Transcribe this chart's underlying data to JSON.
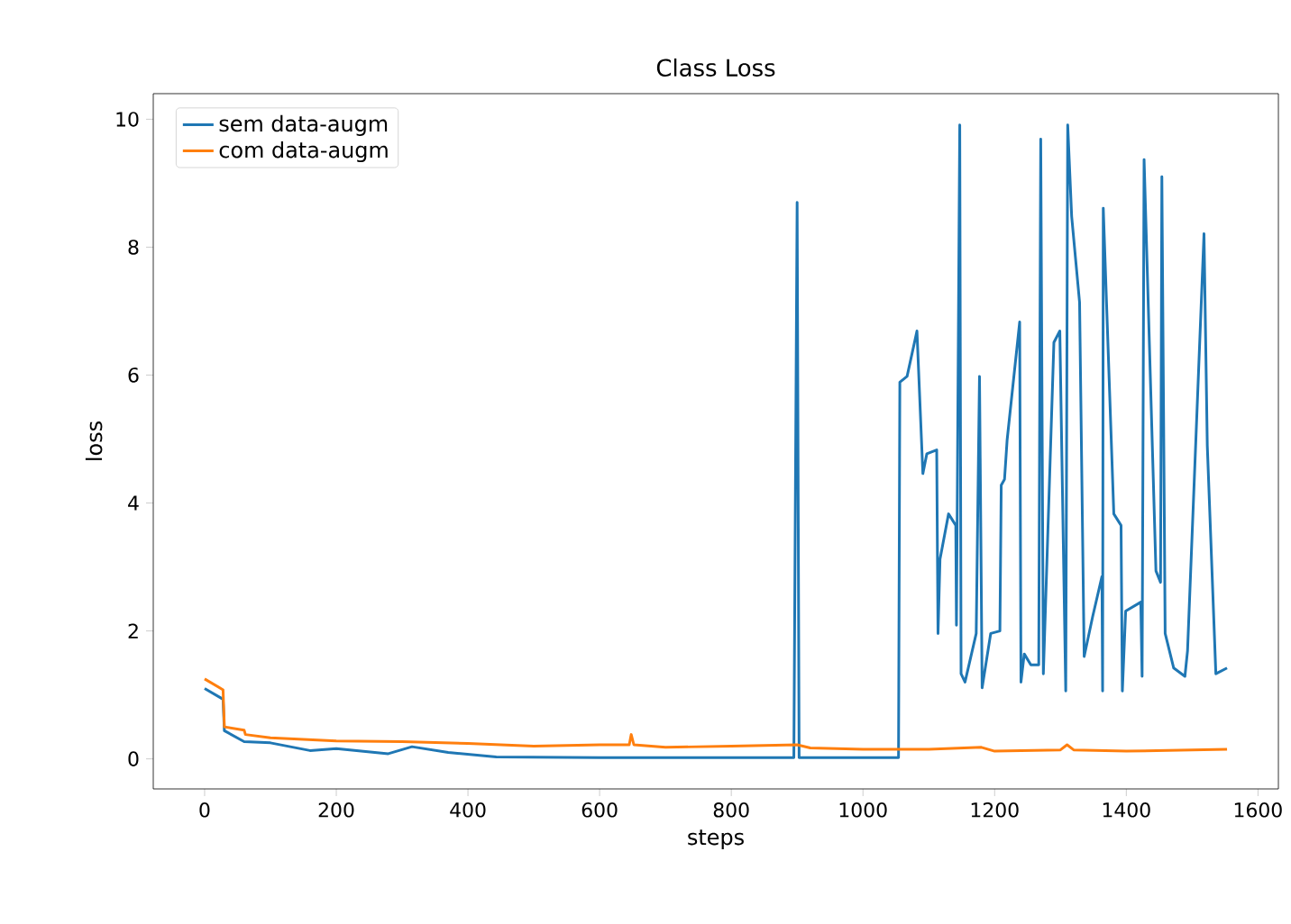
{
  "chart_data": {
    "type": "line",
    "title": "Class Loss",
    "xlabel": "steps",
    "ylabel": "loss",
    "xlim": [
      -78,
      1631
    ],
    "ylim": [
      -0.47,
      10.4
    ],
    "xticks": [
      0,
      200,
      400,
      600,
      800,
      1000,
      1200,
      1400,
      1600
    ],
    "yticks": [
      0,
      2,
      4,
      6,
      8,
      10
    ],
    "legend": "top left",
    "grid": false,
    "marker": "none",
    "line_style": "solid",
    "series": [
      {
        "name": "sem data-augm",
        "color": "#1f77b4",
        "x": [
          0,
          25,
          28,
          30,
          60,
          100,
          160,
          200,
          279,
          315,
          370,
          443,
          600,
          800,
          895,
          900,
          903,
          1050,
          1054,
          1056,
          1067,
          1082,
          1091,
          1097,
          1112,
          1114,
          1117,
          1130,
          1141,
          1142,
          1147,
          1149,
          1155,
          1172,
          1177,
          1181,
          1194,
          1208,
          1210,
          1215,
          1219,
          1238,
          1240,
          1245,
          1255,
          1267,
          1270,
          1274,
          1290,
          1299,
          1308,
          1311,
          1317,
          1329,
          1336,
          1349,
          1363,
          1364,
          1365,
          1381,
          1392,
          1394,
          1399,
          1422,
          1424,
          1427,
          1445,
          1452,
          1454,
          1459,
          1472,
          1489,
          1493,
          1518,
          1523,
          1536,
          1553
        ],
        "values": [
          1.1,
          0.95,
          0.93,
          0.44,
          0.27,
          0.25,
          0.13,
          0.16,
          0.08,
          0.19,
          0.1,
          0.03,
          0.02,
          0.02,
          0.02,
          8.7,
          0.02,
          0.02,
          0.02,
          5.89,
          5.98,
          6.69,
          4.46,
          4.77,
          4.83,
          1.96,
          3.12,
          3.83,
          3.65,
          2.09,
          9.91,
          1.33,
          1.2,
          1.96,
          5.98,
          1.11,
          1.96,
          2.0,
          4.28,
          4.37,
          4.99,
          6.83,
          1.2,
          1.64,
          1.47,
          1.47,
          9.69,
          1.33,
          6.51,
          6.69,
          1.06,
          9.91,
          8.48,
          7.14,
          1.6,
          2.23,
          2.85,
          1.06,
          8.61,
          3.83,
          3.65,
          1.06,
          2.31,
          2.45,
          1.29,
          9.37,
          2.94,
          2.76,
          9.1,
          1.96,
          1.42,
          1.29,
          1.69,
          8.21,
          4.9,
          1.33,
          1.42
        ]
      },
      {
        "name": "com data-augm",
        "color": "#ff7f0e",
        "x": [
          0,
          28,
          30,
          60,
          62,
          100,
          200,
          300,
          400,
          500,
          600,
          645,
          648,
          652,
          700,
          800,
          900,
          920,
          1000,
          1100,
          1180,
          1200,
          1300,
          1310,
          1320,
          1400,
          1553
        ],
        "values": [
          1.25,
          1.08,
          0.5,
          0.45,
          0.38,
          0.33,
          0.28,
          0.27,
          0.24,
          0.2,
          0.22,
          0.22,
          0.38,
          0.22,
          0.18,
          0.2,
          0.22,
          0.17,
          0.15,
          0.15,
          0.18,
          0.12,
          0.14,
          0.22,
          0.14,
          0.12,
          0.15
        ]
      }
    ]
  }
}
